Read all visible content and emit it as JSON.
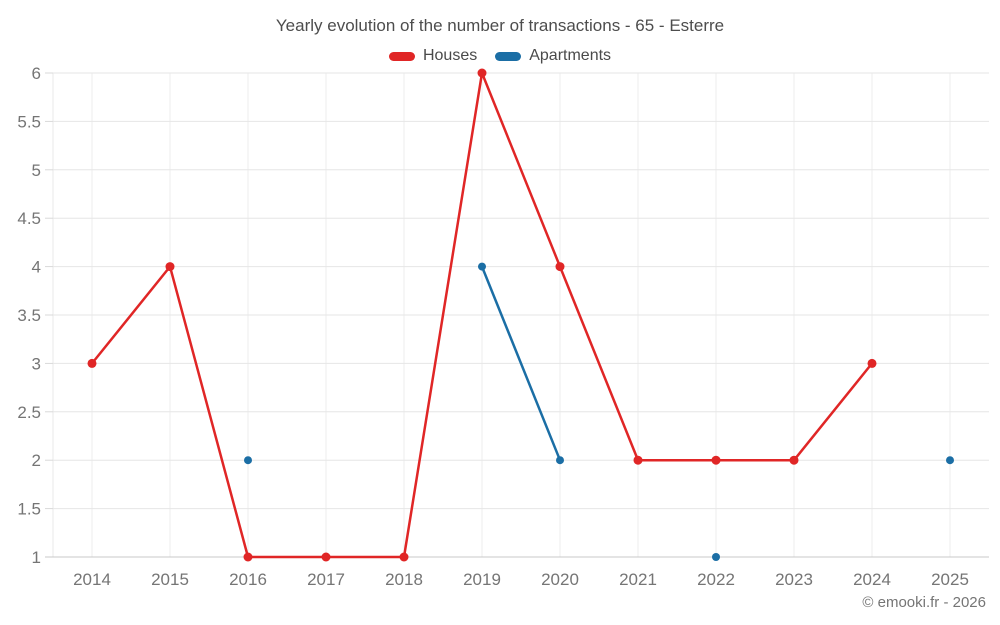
{
  "chart_data": {
    "type": "line",
    "title": "Yearly evolution of the number of transactions - 65 - Esterre",
    "categories": [
      "2014",
      "2015",
      "2016",
      "2017",
      "2018",
      "2019",
      "2020",
      "2021",
      "2022",
      "2023",
      "2024",
      "2025"
    ],
    "series": [
      {
        "name": "Houses",
        "color": "#e02626",
        "values": [
          3,
          4,
          1,
          1,
          1,
          6,
          4,
          2,
          2,
          2,
          3,
          null
        ]
      },
      {
        "name": "Apartments",
        "color": "#1b6ea5",
        "values": [
          null,
          null,
          2,
          null,
          null,
          4,
          2,
          null,
          1,
          null,
          null,
          2
        ]
      }
    ],
    "y_ticks": [
      1,
      1.5,
      2,
      2.5,
      3,
      3.5,
      4,
      4.5,
      5,
      5.5,
      6
    ],
    "ylim": [
      1,
      6
    ],
    "xlabel": "",
    "ylabel": "",
    "grid": true,
    "legend_position": "top",
    "credit": "© emooki.fr - 2026"
  }
}
